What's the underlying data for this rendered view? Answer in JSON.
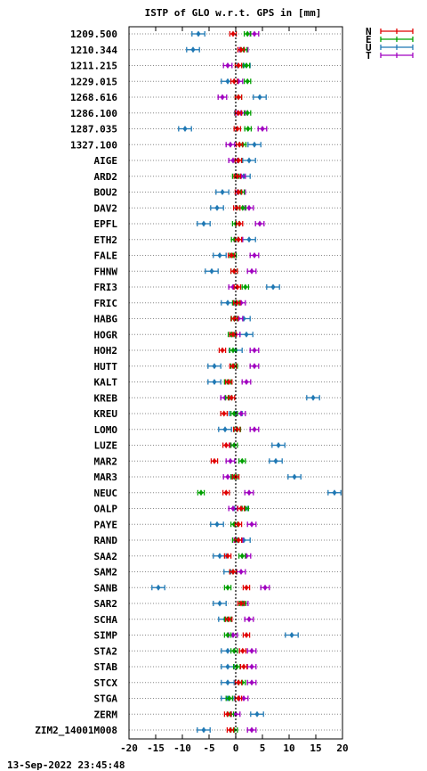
{
  "chart_data": {
    "type": "scatter",
    "title": "ISTP of GLO w.r.t. GPS in [mm]",
    "xlim": [
      -20,
      20
    ],
    "xticks": [
      -20,
      -15,
      -10,
      -5,
      0,
      5,
      10,
      15,
      20
    ],
    "grid": "horizontal dotted",
    "legend_position": "top-right, outside",
    "timestamp": "13-Sep-2022 23:45:48",
    "categories": [
      "1209.500",
      "1210.344",
      "1211.215",
      "1229.015",
      "1268.616",
      "1286.100",
      "1287.035",
      "1327.100",
      "AIGE",
      "ARD2",
      "BOU2",
      "DAV2",
      "EPFL",
      "ETH2",
      "FALE",
      "FHNW",
      "FRI3",
      "FRIC",
      "HABG",
      "HOGR",
      "HOH2",
      "HUTT",
      "KALT",
      "KREB",
      "KREU",
      "LOMO",
      "LUZE",
      "MAR2",
      "MAR3",
      "NEUC",
      "OALP",
      "PAYE",
      "RAND",
      "SAA2",
      "SAM2",
      "SANB",
      "SAR2",
      "SCHA",
      "SIMP",
      "STA2",
      "STAB",
      "STCX",
      "STGA",
      "ZERM",
      "ZIM2_14001M008"
    ],
    "series": [
      {
        "name": "N",
        "color": "#e00000",
        "err": 0.6,
        "values": [
          -0.5,
          1.0,
          0.5,
          -0.3,
          0.5,
          0.5,
          0.3,
          0.7,
          0.5,
          0.3,
          0.5,
          0.2,
          0.7,
          0.5,
          -0.8,
          -0.3,
          0.3,
          0.2,
          -0.2,
          -0.5,
          -2.5,
          -0.5,
          -1.3,
          -0.8,
          -2.2,
          0.2,
          -1.8,
          -4.0,
          0.0,
          -1.8,
          1.0,
          0.5,
          0.5,
          -1.5,
          -0.5,
          2.0,
          1.0,
          -1.3,
          2.0,
          1.3,
          1.5,
          0.5,
          0.5,
          -1.5,
          -1.0
        ]
      },
      {
        "name": "E",
        "color": "#00a000",
        "err": 0.6,
        "values": [
          2.2,
          1.5,
          2.0,
          2.2,
          0.5,
          2.2,
          2.3,
          1.3,
          0.5,
          0.0,
          1.0,
          1.3,
          0.0,
          -0.2,
          -0.5,
          -0.3,
          1.8,
          0.0,
          -0.3,
          -0.8,
          -0.5,
          -0.3,
          -1.5,
          -1.3,
          -0.3,
          0.3,
          -0.3,
          1.2,
          -0.3,
          -6.5,
          1.8,
          -0.3,
          0.0,
          1.2,
          -0.5,
          -1.5,
          1.3,
          -1.5,
          -1.5,
          -0.3,
          0.2,
          1.2,
          -1.2,
          -1.0,
          -0.3
        ]
      },
      {
        "name": "U",
        "color": "#1f78b4",
        "err": 1.2,
        "values": [
          -7.0,
          -8.0,
          1.5,
          -1.5,
          4.5,
          1.0,
          -9.5,
          3.5,
          2.5,
          1.5,
          -2.5,
          -3.5,
          -6.0,
          2.5,
          -3.0,
          -4.5,
          7.0,
          -1.5,
          1.5,
          2.0,
          0.0,
          -4.0,
          -4.0,
          14.5,
          0.0,
          -2.0,
          8.0,
          7.5,
          11.0,
          18.5,
          1.0,
          -3.5,
          1.5,
          -3.0,
          -1.0,
          -14.5,
          -3.0,
          -2.0,
          10.5,
          -1.5,
          -1.5,
          -1.5,
          -1.5,
          4.0,
          -6.0
        ]
      },
      {
        "name": "T",
        "color": "#a000c0",
        "err": 0.8,
        "values": [
          3.5,
          1.5,
          -1.5,
          0.5,
          -2.5,
          1.0,
          5.0,
          -1.0,
          -0.5,
          1.0,
          1.0,
          2.5,
          4.5,
          0.5,
          3.5,
          3.0,
          -0.5,
          1.0,
          0.5,
          0.0,
          3.5,
          3.5,
          2.0,
          -2.0,
          1.0,
          3.5,
          -1.0,
          -1.0,
          -1.5,
          2.5,
          -0.5,
          3.0,
          0.5,
          2.0,
          1.0,
          5.5,
          1.5,
          2.5,
          -0.5,
          3.0,
          3.0,
          3.0,
          1.5,
          0.0,
          3.0
        ]
      }
    ]
  }
}
